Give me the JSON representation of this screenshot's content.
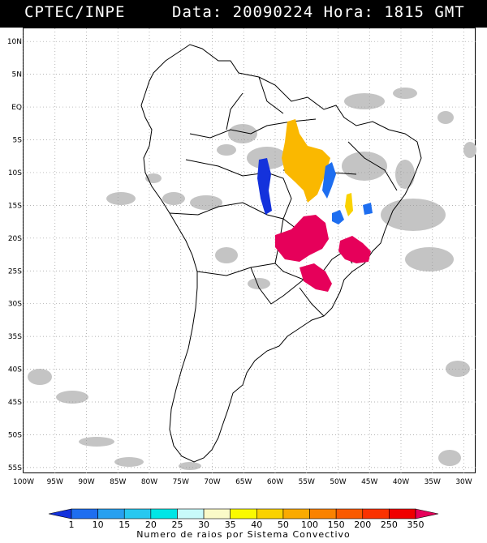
{
  "header": {
    "source": "CPTEC/INPE",
    "datetime": "Data: 20090224 Hora: 1815 GMT"
  },
  "map": {
    "lat_labels": [
      "10N",
      "5N",
      "EQ",
      "5S",
      "10S",
      "15S",
      "20S",
      "25S",
      "30S",
      "35S",
      "40S",
      "45S",
      "50S",
      "55S"
    ],
    "lat_values": [
      10,
      5,
      0,
      -5,
      -10,
      -15,
      -20,
      -25,
      -30,
      -35,
      -40,
      -45,
      -50,
      -55
    ],
    "lon_labels": [
      "100W",
      "95W",
      "90W",
      "85W",
      "80W",
      "75W",
      "70W",
      "65W",
      "60W",
      "55W",
      "50W",
      "45W",
      "40W",
      "35W",
      "30W"
    ],
    "lon_values": [
      -100,
      -95,
      -90,
      -85,
      -80,
      -75,
      -70,
      -65,
      -60,
      -55,
      -50,
      -45,
      -40,
      -35,
      -30
    ],
    "grid": true,
    "cloud_color": "#b4b4b4",
    "coast_color": "#000000"
  },
  "legend": {
    "ticks": [
      "1",
      "10",
      "15",
      "20",
      "25",
      "30",
      "35",
      "40",
      "50",
      "100",
      "150",
      "200",
      "250",
      "350"
    ],
    "colors": [
      "#1432dc",
      "#1e6ef0",
      "#28a0f0",
      "#28c8f0",
      "#00e6e6",
      "#c8fafa",
      "#fafac8",
      "#fafa00",
      "#fad200",
      "#faaa00",
      "#fa8200",
      "#fa5a00",
      "#fa3200",
      "#f00000",
      "#e6005a"
    ],
    "caption": "Numero de raios por Sistema Convectivo"
  }
}
